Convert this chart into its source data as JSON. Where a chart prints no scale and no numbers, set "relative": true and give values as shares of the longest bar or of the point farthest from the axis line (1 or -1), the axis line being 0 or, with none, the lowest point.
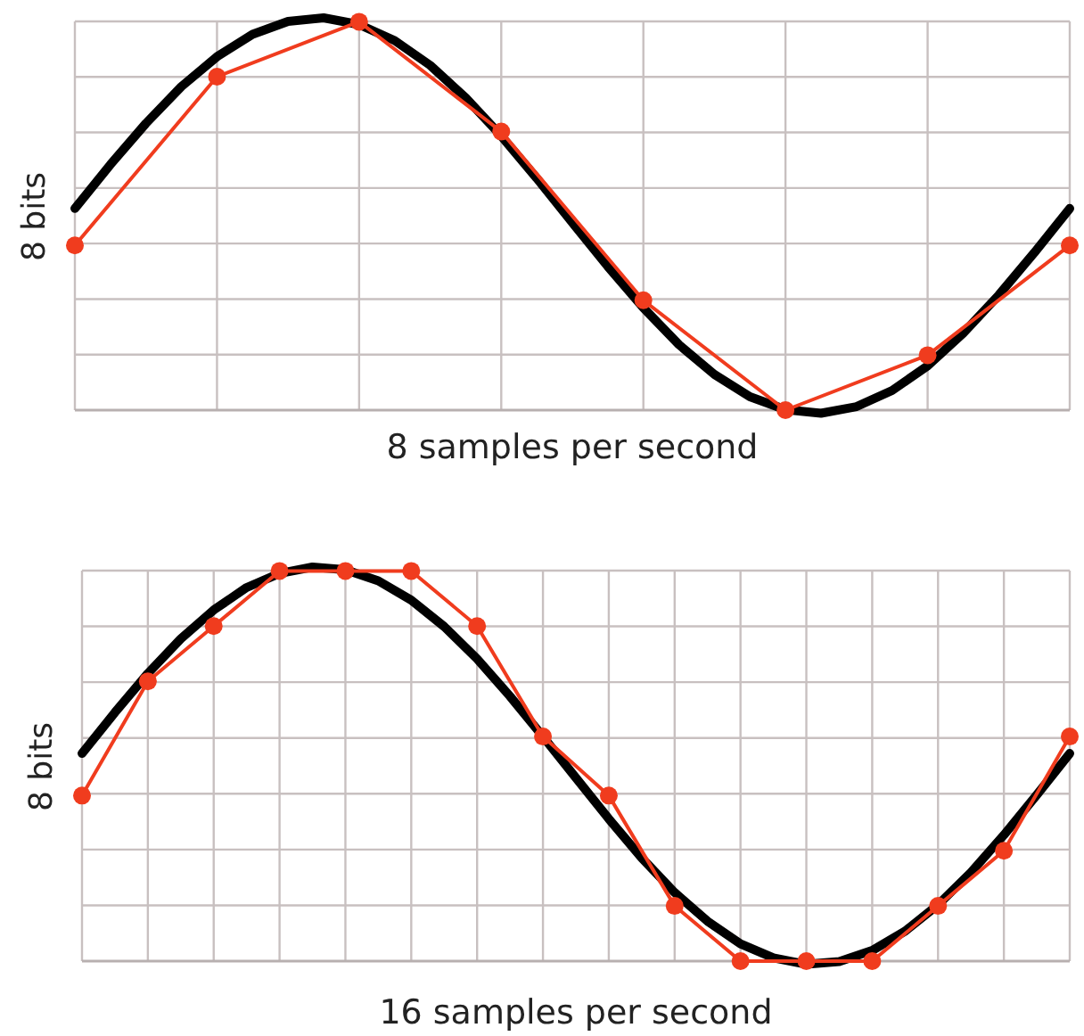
{
  "chart_data": [
    {
      "type": "line",
      "xlabel": "8 samples per second",
      "ylabel": "8 bits",
      "relative": true,
      "grid": true,
      "line_style": "solid",
      "categories": [
        null,
        null,
        null,
        null,
        null,
        null,
        null,
        null,
        null,
        null,
        null,
        null,
        null,
        null,
        null,
        null,
        null,
        null,
        null,
        null,
        null,
        null,
        null,
        null,
        null,
        null,
        null,
        null,
        null
      ],
      "series": [
        {
          "color": "#000000",
          "marker": "none",
          "values": [
            0.514,
            0.626,
            0.731,
            0.825,
            0.901,
            0.958,
            0.991,
            1.0,
            0.983,
            0.942,
            0.879,
            0.796,
            0.699,
            0.591,
            0.478,
            0.366,
            0.261,
            0.167,
            0.091,
            0.034,
            0.001,
            -0.008,
            0.009,
            0.05,
            0.113,
            0.196,
            0.293,
            0.401,
            0.514
          ]
        },
        {
          "color": "#f03c1e",
          "marker": "circle",
          "values": [
            0.42,
            null,
            null,
            null,
            0.85,
            null,
            null,
            null,
            0.99,
            null,
            null,
            null,
            0.71,
            null,
            null,
            null,
            0.28,
            null,
            null,
            null,
            0,
            null,
            null,
            null,
            0.14,
            null,
            null,
            null,
            0.42
          ]
        }
      ]
    },
    {
      "type": "line",
      "xlabel": "16 samples per second",
      "ylabel": "8 bits",
      "relative": true,
      "grid": true,
      "line_style": "solid",
      "categories": [
        null,
        null,
        null,
        null,
        null,
        null,
        null,
        null,
        null,
        null,
        null,
        null,
        null,
        null,
        null,
        null,
        null,
        null,
        null,
        null,
        null,
        null,
        null,
        null,
        null,
        null,
        null,
        null,
        null,
        null,
        null
      ],
      "series": [
        {
          "color": "#000000",
          "marker": "none",
          "values": [
            0.527,
            0.631,
            0.73,
            0.818,
            0.891,
            0.948,
            0.984,
            1.0,
            0.993,
            0.965,
            0.916,
            0.849,
            0.767,
            0.672,
            0.57,
            0.465,
            0.361,
            0.262,
            0.174,
            0.101,
            0.044,
            0.008,
            -0.008,
            -0.001,
            0.027,
            0.076,
            0.143,
            0.225,
            0.32,
            0.422,
            0.527
          ]
        },
        {
          "color": "#f03c1e",
          "marker": "circle",
          "values": [
            0.42,
            null,
            0.71,
            null,
            0.85,
            null,
            0.99,
            null,
            0.99,
            null,
            0.99,
            null,
            0.85,
            null,
            0.57,
            null,
            0.42,
            null,
            0.14,
            null,
            0,
            null,
            0,
            null,
            0,
            null,
            0.14,
            null,
            0.28,
            null,
            0.57
          ]
        }
      ]
    }
  ]
}
